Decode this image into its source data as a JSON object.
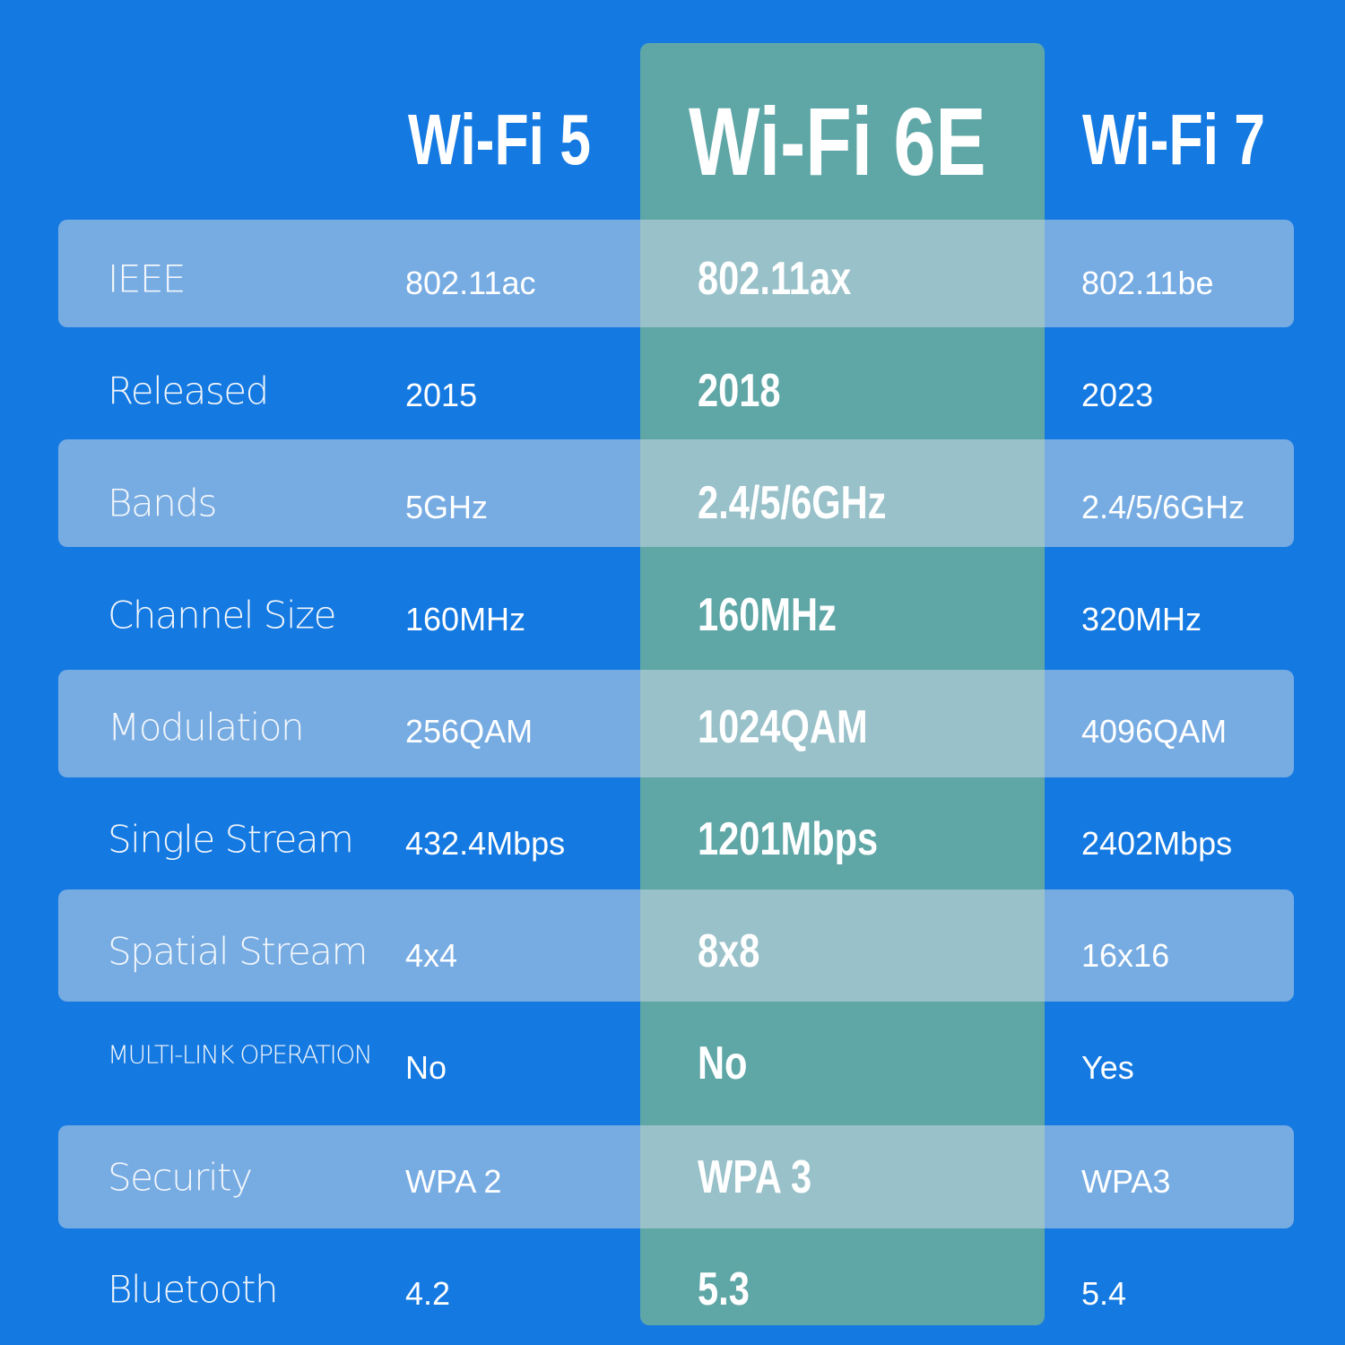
{
  "colors": {
    "background": "#1479e1",
    "highlight_column": "#5fa6a6",
    "stripe": "#7aa8d8"
  },
  "headers": [
    "Wi-Fi 5",
    "Wi-Fi 6E",
    "Wi-Fi 7"
  ],
  "rows": [
    {
      "label": "IEEE",
      "values": [
        "802.11ac",
        "802.11ax",
        "802.11be"
      ]
    },
    {
      "label": "Released",
      "values": [
        "2015",
        "2018",
        "2023"
      ]
    },
    {
      "label": "Bands",
      "values": [
        "5GHz",
        "2.4/5/6GHz",
        "2.4/5/6GHz"
      ]
    },
    {
      "label": "Channel Size",
      "values": [
        "160MHz",
        "160MHz",
        "320MHz"
      ]
    },
    {
      "label": "Modulation",
      "values": [
        "256QAM",
        "1024QAM",
        "4096QAM"
      ]
    },
    {
      "label": "Single Stream",
      "values": [
        "432.4Mbps",
        "1201Mbps",
        "2402Mbps"
      ]
    },
    {
      "label": "Spatial Stream",
      "values": [
        "4x4",
        "8x8",
        "16x16"
      ]
    },
    {
      "label": "MULTI-LINK OPERATION",
      "values": [
        "No",
        "No",
        "Yes"
      ]
    },
    {
      "label": "Security",
      "values": [
        "WPA 2",
        "WPA 3",
        "WPA3"
      ]
    },
    {
      "label": "Bluetooth",
      "values": [
        "4.2",
        "5.3",
        "5.4"
      ]
    }
  ]
}
